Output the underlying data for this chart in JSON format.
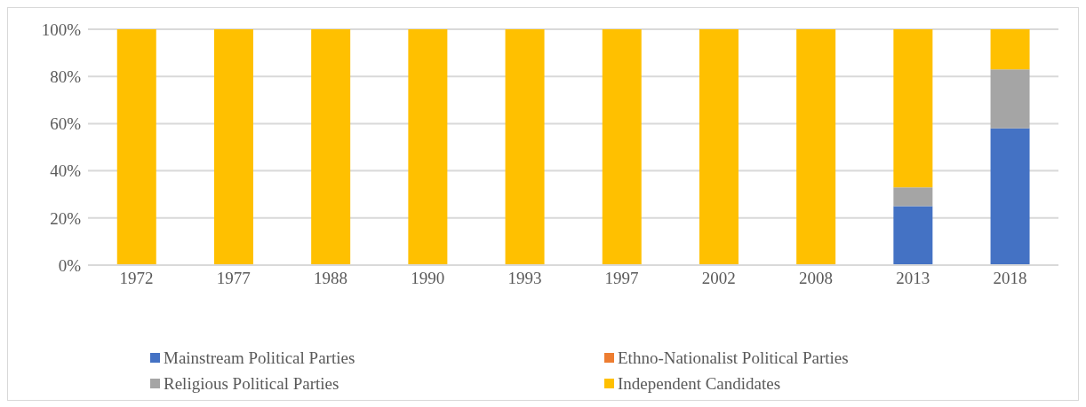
{
  "chart_data": {
    "type": "bar",
    "stacked": true,
    "categories": [
      "1972",
      "1977",
      "1988",
      "1990",
      "1993",
      "1997",
      "2002",
      "2008",
      "2013",
      "2018"
    ],
    "series": [
      {
        "name": "Mainstream Political Parties",
        "color": "#4472c4",
        "values": [
          0,
          0,
          0,
          0,
          0,
          0,
          0,
          0,
          25,
          58
        ]
      },
      {
        "name": "Ethno-Nationalist Political Parties",
        "color": "#ed7d31",
        "values": [
          0,
          0,
          0,
          0,
          0,
          0,
          0,
          0,
          0,
          0
        ]
      },
      {
        "name": "Religious Political Parties",
        "color": "#a5a5a5",
        "values": [
          0,
          0,
          0,
          0,
          0,
          0,
          0,
          0,
          8,
          25
        ]
      },
      {
        "name": "Independent Candidates",
        "color": "#ffc000",
        "values": [
          100,
          100,
          100,
          100,
          100,
          100,
          100,
          100,
          67,
          17
        ]
      }
    ],
    "ylim": [
      0,
      100
    ],
    "yticks": [
      {
        "value": 0,
        "label": "0%"
      },
      {
        "value": 20,
        "label": "20%"
      },
      {
        "value": 40,
        "label": "40%"
      },
      {
        "value": 60,
        "label": "60%"
      },
      {
        "value": 80,
        "label": "80%"
      },
      {
        "value": 100,
        "label": "100%"
      }
    ],
    "grid": "y",
    "legend": "bottom"
  }
}
